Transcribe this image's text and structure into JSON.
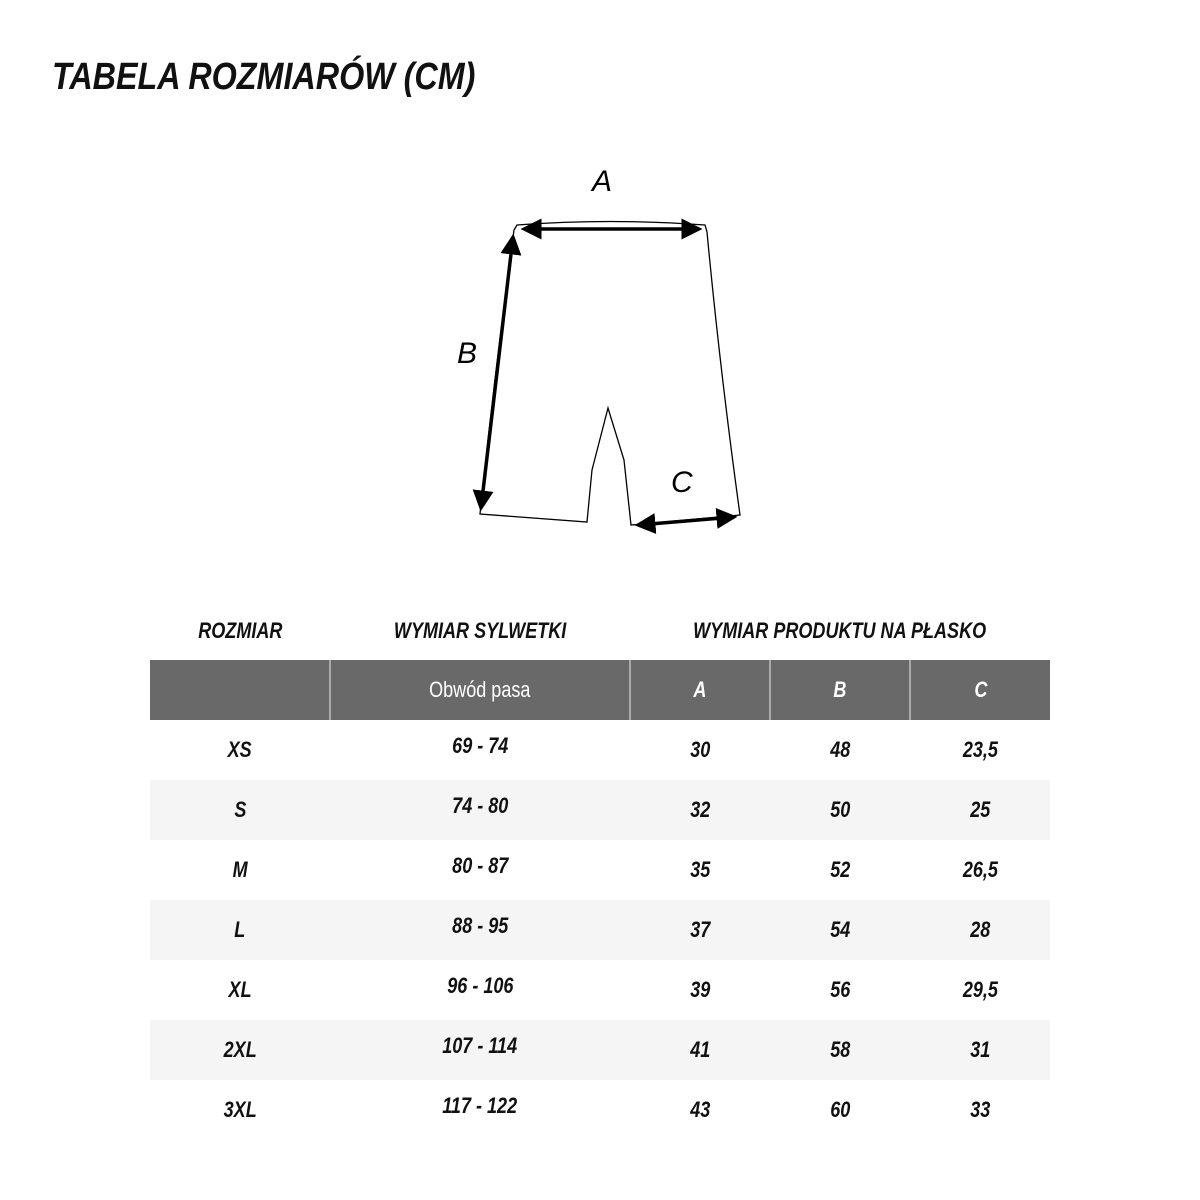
{
  "title": "TABELA ROZMIARÓW (CM)",
  "diagram": {
    "labels": {
      "a": "A",
      "b": "B",
      "c": "C"
    }
  },
  "group_headers": {
    "size": "ROZMIAR",
    "body": "WYMIAR SYLWETKI",
    "product": "WYMIAR PRODUKTU NA PŁASKO"
  },
  "columns": [
    "",
    "Obwód pasa",
    "A",
    "B",
    "C"
  ],
  "rows": [
    [
      "XS",
      "69 - 74",
      "30",
      "48",
      "23,5"
    ],
    [
      "S",
      "74 - 80",
      "32",
      "50",
      "25"
    ],
    [
      "M",
      "80 - 87",
      "35",
      "52",
      "26,5"
    ],
    [
      "L",
      "88 - 95",
      "37",
      "54",
      "28"
    ],
    [
      "XL",
      "96 - 106",
      "39",
      "56",
      "29,5"
    ],
    [
      "2XL",
      "107 - 114",
      "41",
      "58",
      "31"
    ],
    [
      "3XL",
      "117 - 122",
      "43",
      "60",
      "33"
    ]
  ],
  "colors": {
    "header_bg": "#696969",
    "alt_row": "#f5f5f5"
  }
}
